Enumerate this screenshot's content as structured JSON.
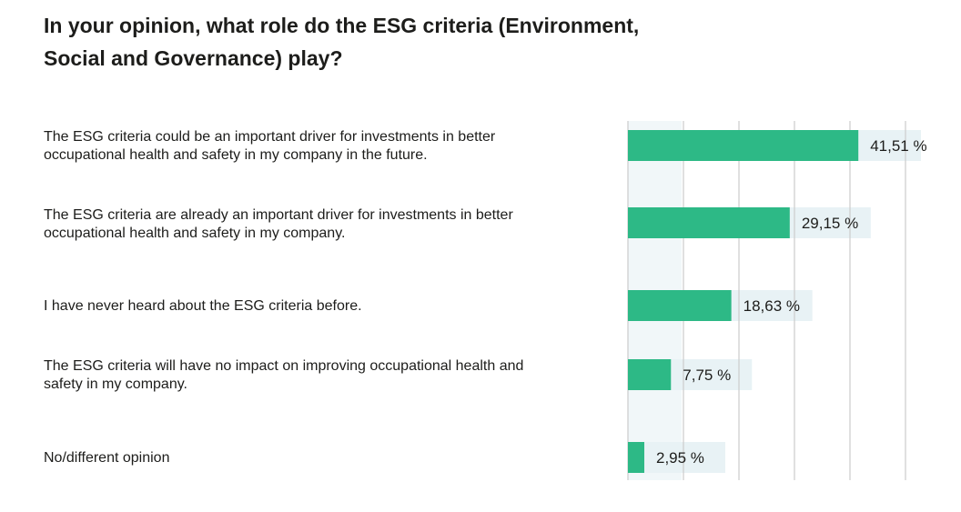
{
  "title": "In your opinion, what role do the ESG criteria (Environment, Social and Governance) play?",
  "colors": {
    "bar": "#2db986",
    "track": "#e8f2f5",
    "grid": "#cccccc"
  },
  "chart_data": {
    "type": "bar",
    "orientation": "horizontal",
    "title": "In your opinion, what role do the ESG criteria (Environment, Social and Governance) play?",
    "categories": [
      "The ESG criteria could be an important driver for investments in better occupational health and safety in my company in the future.",
      "The ESG criteria are already an important driver for investments in better occupational health and safety in my company.",
      "I have never heard about the ESG criteria before.",
      "The ESG criteria will have no impact on improving occupational health and safety in my company.",
      "No/different opinion"
    ],
    "values": [
      41.51,
      29.15,
      18.63,
      7.75,
      2.95
    ],
    "value_labels": [
      "41,51 %",
      "29,15 %",
      "18,63 %",
      "7,75 %",
      "2,95 %"
    ],
    "unit": "%",
    "xlim": [
      0,
      50
    ],
    "grid": true,
    "legend": "none"
  }
}
